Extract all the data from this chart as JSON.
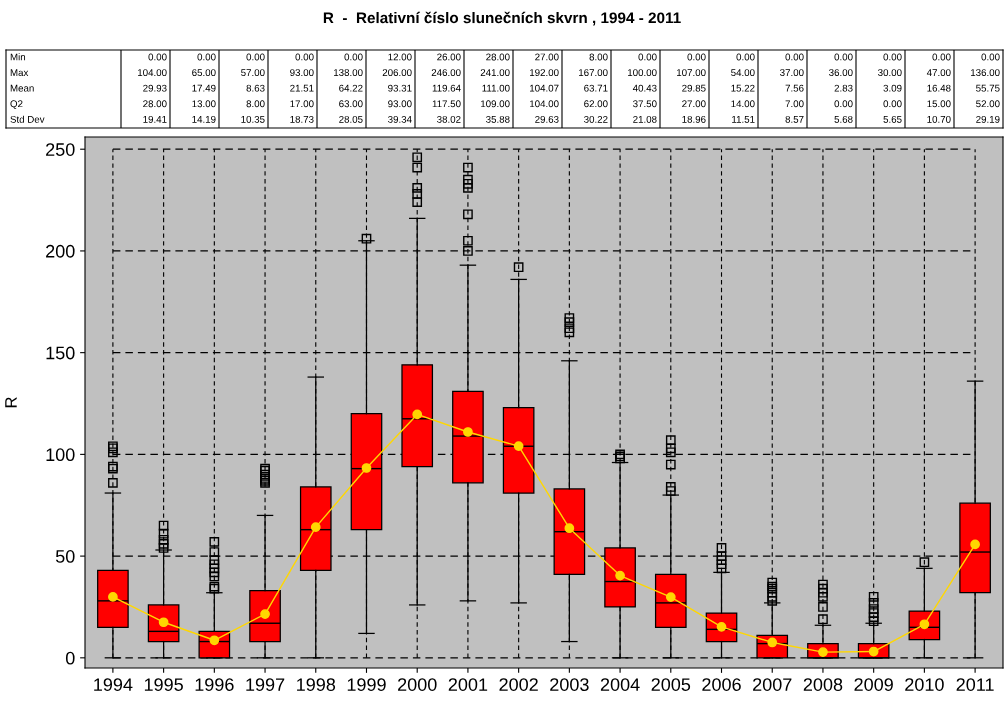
{
  "chart_data": {
    "type": "box",
    "title": "R  -  Relativní číslo slunečních skvrn , 1994 - 2011",
    "ylabel": "R",
    "categories": [
      "1994",
      "1995",
      "1996",
      "1997",
      "1998",
      "1999",
      "2000",
      "2001",
      "2002",
      "2003",
      "2004",
      "2005",
      "2006",
      "2007",
      "2008",
      "2009",
      "2010",
      "2011"
    ],
    "series": [
      {
        "color": "#ff0000",
        "boxes": [
          {
            "low": 0,
            "q1": 15,
            "median": 28,
            "q3": 43,
            "high": 81,
            "outliers": [
              86,
              93,
              94,
              101,
              103,
              104
            ]
          },
          {
            "low": 0,
            "q1": 8,
            "median": 13,
            "q3": 26,
            "high": 53,
            "outliers": [
              54,
              56,
              58,
              61,
              65
            ]
          },
          {
            "low": 0,
            "q1": 0,
            "median": 8,
            "q3": 13,
            "high": 32,
            "outliers": [
              34,
              35,
              40,
              42,
              44,
              46,
              48,
              52,
              57
            ]
          },
          {
            "low": 0,
            "q1": 8,
            "median": 17,
            "q3": 33,
            "high": 70,
            "outliers": [
              86,
              87,
              88,
              89,
              90,
              92,
              93
            ]
          },
          {
            "low": 0,
            "q1": 43,
            "median": 63,
            "q3": 84,
            "high": 138
          },
          {
            "low": 12,
            "q1": 63,
            "median": 93,
            "q3": 120,
            "high": 205,
            "outliers": [
              206
            ]
          },
          {
            "low": 26,
            "q1": 94,
            "median": 117.5,
            "q3": 144,
            "high": 216,
            "outliers": [
              224,
              228,
              231,
              241,
              246
            ]
          },
          {
            "low": 28,
            "q1": 86,
            "median": 109,
            "q3": 131,
            "high": 193,
            "outliers": [
              200,
              205,
              218,
              231,
              233,
              235,
              241
            ]
          },
          {
            "low": 27,
            "q1": 81,
            "median": 104,
            "q3": 123,
            "high": 186,
            "outliers": [
              192
            ]
          },
          {
            "low": 8,
            "q1": 41,
            "median": 62,
            "q3": 83,
            "high": 146,
            "outliers": [
              160,
              162,
              165,
              167
            ]
          },
          {
            "low": 0,
            "q1": 25,
            "median": 37.5,
            "q3": 54,
            "high": 96,
            "outliers": [
              98,
              99,
              100
            ]
          },
          {
            "low": 0,
            "q1": 15,
            "median": 27,
            "q3": 41,
            "high": 80,
            "outliers": [
              82,
              84,
              95,
              101,
              103,
              107
            ]
          },
          {
            "low": 0,
            "q1": 8,
            "median": 14,
            "q3": 22,
            "high": 42,
            "outliers": [
              44,
              46,
              48,
              50,
              54
            ]
          },
          {
            "low": 0,
            "q1": 0,
            "median": 7,
            "q3": 11,
            "high": 27,
            "outliers": [
              28,
              30,
              32,
              34,
              35,
              37
            ]
          },
          {
            "low": 0,
            "q1": 0,
            "median": 0,
            "q3": 7,
            "high": 16,
            "outliers": [
              19,
              25,
              30,
              32,
              34,
              36
            ]
          },
          {
            "low": 0,
            "q1": 0,
            "median": 0,
            "q3": 7,
            "high": 17,
            "outliers": [
              18,
              20,
              22,
              24,
              27,
              30
            ]
          },
          {
            "low": 0,
            "q1": 9,
            "median": 15,
            "q3": 23,
            "high": 44,
            "outliers": [
              47
            ]
          },
          {
            "low": 0,
            "q1": 32,
            "median": 52,
            "q3": 76,
            "high": 136
          }
        ]
      },
      {
        "type": "line",
        "color": "#ffd700",
        "values": [
          29.93,
          17.49,
          8.63,
          21.51,
          64.22,
          93.31,
          119.64,
          111.0,
          104.07,
          63.71,
          40.43,
          29.85,
          15.22,
          7.56,
          2.83,
          3.09,
          16.48,
          55.75
        ]
      }
    ],
    "marker": "circle",
    "line_style": "solid",
    "grid": true,
    "ylim": [
      -5,
      256
    ],
    "yticks": [
      0,
      50,
      100,
      150,
      200,
      250
    ],
    "annotations": [
      "Min",
      "0.00",
      "0.00",
      "0.00",
      "0.00",
      "0.00",
      "12.00",
      "26.00",
      "28.00",
      "27.00",
      "8.00",
      "0.00",
      "0.00",
      "0.00",
      "0.00",
      "0.00",
      "0.00",
      "0.00",
      "0.00",
      "Max",
      "104.00",
      "65.00",
      "57.00",
      "93.00",
      "138.00",
      "206.00",
      "246.00",
      "241.00",
      "192.00",
      "167.00",
      "100.00",
      "107.00",
      "54.00",
      "37.00",
      "36.00",
      "30.00",
      "47.00",
      "136.00",
      "Mean",
      "29.93",
      "17.49",
      "8.63",
      "21.51",
      "64.22",
      "93.31",
      "119.64",
      "111.00",
      "104.07",
      "63.71",
      "40.43",
      "29.85",
      "15.22",
      "7.56",
      "2.83",
      "3.09",
      "16.48",
      "55.75",
      "Q2",
      "28.00",
      "13.00",
      "8.00",
      "17.00",
      "63.00",
      "93.00",
      "117.50",
      "109.00",
      "104.00",
      "62.00",
      "37.50",
      "27.00",
      "14.00",
      "7.00",
      "0.00",
      "0.00",
      "15.00",
      "52.00",
      "Std Dev",
      "19.41",
      "14.19",
      "10.35",
      "18.73",
      "28.05",
      "39.34",
      "38.02",
      "35.88",
      "29.63",
      "30.22",
      "21.08",
      "18.96",
      "11.51",
      "8.57",
      "5.68",
      "5.65",
      "10.70",
      "29.19"
    ]
  }
}
